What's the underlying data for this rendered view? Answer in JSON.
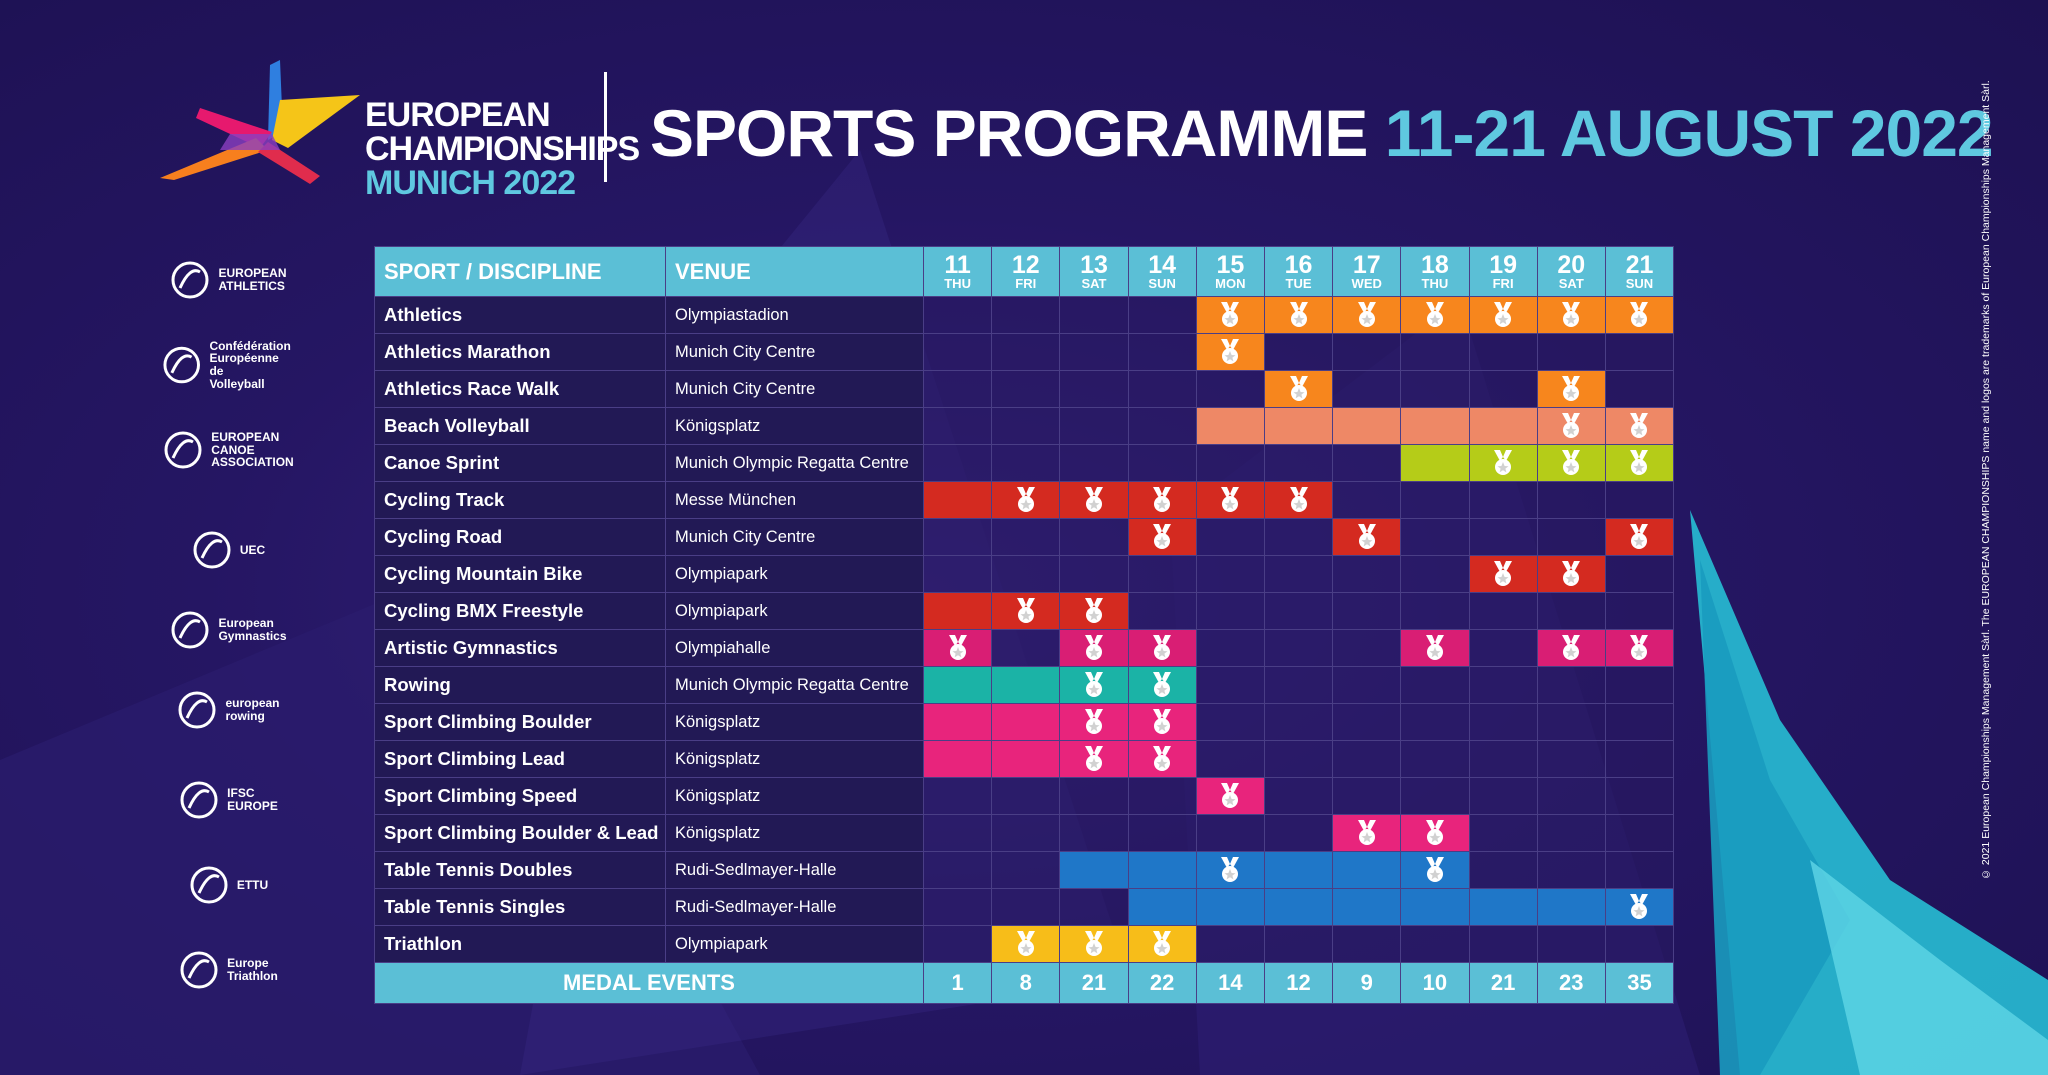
{
  "header": {
    "logo_lines": [
      "EUROPEAN",
      "CHAMPIONSHIPS",
      "MUNICH 2022"
    ],
    "title_white": "SPORTS PROGRAMME",
    "title_blue": "11-21 AUGUST 2022"
  },
  "copyright": "© 2021 European Championships Management Sàrl. The EUROPEAN CHAMPIONSHIPS name and logos are trademarks of European Championships Management Sàrl.",
  "federations": [
    {
      "icon": "european-athletics-logo-icon",
      "lines": [
        "EUROPEAN",
        "ATHLETICS"
      ]
    },
    {
      "icon": "volleyball-confederation-logo-icon",
      "lines": [
        "Confédération",
        "Européenne de",
        "Volleyball"
      ]
    },
    {
      "icon": "canoe-association-logo-icon",
      "lines": [
        "EUROPEAN",
        "CANOE",
        "ASSOCIATION"
      ]
    },
    {
      "icon": "uec-logo-icon",
      "lines": [
        "UEC"
      ]
    },
    {
      "icon": "european-gymnastics-logo-icon",
      "lines": [
        "European",
        "Gymnastics"
      ]
    },
    {
      "icon": "european-rowing-logo-icon",
      "lines": [
        "european",
        "rowing"
      ]
    },
    {
      "icon": "ifsc-europe-logo-icon",
      "lines": [
        "IFSC",
        "EUROPE"
      ]
    },
    {
      "icon": "ettu-logo-icon",
      "lines": [
        "ETTU"
      ]
    },
    {
      "icon": "europe-triathlon-logo-icon",
      "lines": [
        "Europe",
        "Triathlon"
      ]
    }
  ],
  "table": {
    "col_sport": "SPORT / DISCIPLINE",
    "col_venue": "VENUE",
    "days": [
      {
        "num": "11",
        "name": "THU"
      },
      {
        "num": "12",
        "name": "FRI"
      },
      {
        "num": "13",
        "name": "SAT"
      },
      {
        "num": "14",
        "name": "SUN"
      },
      {
        "num": "15",
        "name": "MON"
      },
      {
        "num": "16",
        "name": "TUE"
      },
      {
        "num": "17",
        "name": "WED"
      },
      {
        "num": "18",
        "name": "THU"
      },
      {
        "num": "19",
        "name": "FRI"
      },
      {
        "num": "20",
        "name": "SAT"
      },
      {
        "num": "21",
        "name": "SUN"
      }
    ],
    "rows": [
      {
        "sport": "Athletics",
        "venue": "Olympiastadion",
        "color": "#f7861d",
        "active": [
          4,
          5,
          6,
          7,
          8,
          9,
          10
        ],
        "medals": [
          4,
          5,
          6,
          7,
          8,
          9,
          10
        ]
      },
      {
        "sport": "Athletics Marathon",
        "venue": "Munich City Centre",
        "color": "#f7861d",
        "active": [
          4
        ],
        "medals": [
          4
        ]
      },
      {
        "sport": "Athletics Race Walk",
        "venue": "Munich City Centre",
        "color": "#f7861d",
        "active": [
          5,
          9
        ],
        "medals": [
          5,
          9
        ]
      },
      {
        "sport": "Beach Volleyball",
        "venue": "Königsplatz",
        "color": "#ee8866",
        "active": [
          4,
          5,
          6,
          7,
          8,
          9,
          10
        ],
        "medals": [
          9,
          10
        ]
      },
      {
        "sport": "Canoe Sprint",
        "venue": "Munich Olympic Regatta Centre",
        "color": "#b5cc18",
        "active": [
          7,
          8,
          9,
          10
        ],
        "medals": [
          8,
          9,
          10
        ]
      },
      {
        "sport": "Cycling Track",
        "venue": "Messe München",
        "color": "#d42a20",
        "active": [
          0,
          1,
          2,
          3,
          4,
          5
        ],
        "medals": [
          1,
          2,
          3,
          4,
          5
        ]
      },
      {
        "sport": "Cycling Road",
        "venue": "Munich City Centre",
        "color": "#d42a20",
        "active": [
          3,
          6,
          10
        ],
        "medals": [
          3,
          6,
          10
        ]
      },
      {
        "sport": "Cycling Mountain Bike",
        "venue": "Olympiapark",
        "color": "#d42a20",
        "active": [
          8,
          9
        ],
        "medals": [
          8,
          9
        ]
      },
      {
        "sport": "Cycling BMX Freestyle",
        "venue": "Olympiapark",
        "color": "#d42a20",
        "active": [
          0,
          1,
          2
        ],
        "medals": [
          1,
          2
        ]
      },
      {
        "sport": "Artistic Gymnastics",
        "venue": "Olympiahalle",
        "color": "#d91e74",
        "active": [
          0,
          2,
          3,
          7,
          9,
          10
        ],
        "medals": [
          0,
          2,
          3,
          7,
          9,
          10
        ]
      },
      {
        "sport": "Rowing",
        "venue": "Munich Olympic Regatta Centre",
        "color": "#1bb3a6",
        "active": [
          0,
          1,
          2,
          3
        ],
        "medals": [
          2,
          3
        ]
      },
      {
        "sport": "Sport Climbing Boulder",
        "venue": "Königsplatz",
        "color": "#e8247c",
        "active": [
          0,
          1,
          2,
          3
        ],
        "medals": [
          2,
          3
        ]
      },
      {
        "sport": "Sport Climbing Lead",
        "venue": "Königsplatz",
        "color": "#e8247c",
        "active": [
          0,
          1,
          2,
          3
        ],
        "medals": [
          2,
          3
        ]
      },
      {
        "sport": "Sport Climbing Speed",
        "venue": "Königsplatz",
        "color": "#e8247c",
        "active": [
          4
        ],
        "medals": [
          4
        ]
      },
      {
        "sport": "Sport Climbing Boulder & Lead",
        "venue": "Königsplatz",
        "color": "#e8247c",
        "active": [
          6,
          7
        ],
        "medals": [
          6,
          7
        ]
      },
      {
        "sport": "Table Tennis Doubles",
        "venue": "Rudi-Sedlmayer-Halle",
        "color": "#1f77c8",
        "active": [
          2,
          3,
          4,
          5,
          6,
          7
        ],
        "medals": [
          4,
          7
        ]
      },
      {
        "sport": "Table Tennis Singles",
        "venue": "Rudi-Sedlmayer-Halle",
        "color": "#1f77c8",
        "active": [
          3,
          4,
          5,
          6,
          7,
          8,
          9,
          10
        ],
        "medals": [
          10
        ]
      },
      {
        "sport": "Triathlon",
        "venue": "Olympiapark",
        "color": "#f7bd19",
        "active": [
          1,
          2,
          3
        ],
        "medals": [
          1,
          2,
          3
        ]
      }
    ],
    "footer_label": "MEDAL EVENTS",
    "medal_counts": [
      "1",
      "8",
      "21",
      "22",
      "14",
      "12",
      "9",
      "10",
      "21",
      "23",
      "35"
    ]
  }
}
